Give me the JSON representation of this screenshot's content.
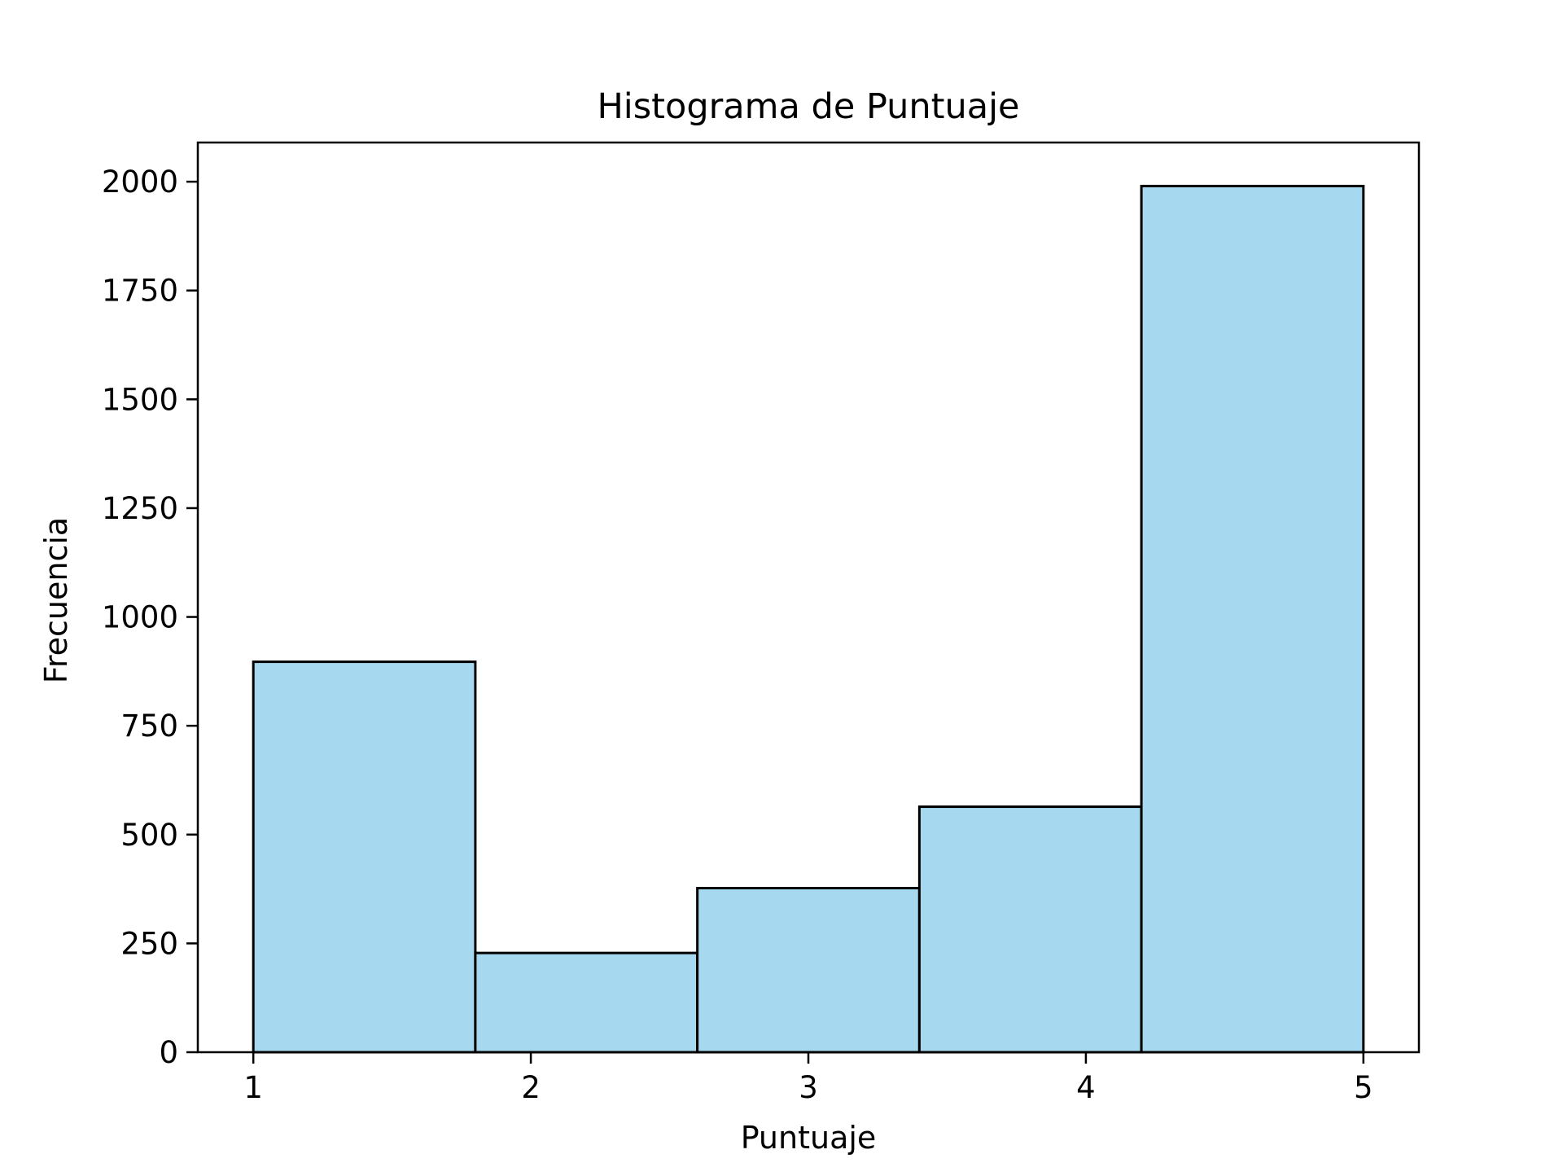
{
  "chart_data": {
    "type": "bar",
    "title": "Histograma de Puntuaje",
    "xlabel": "Puntuaje",
    "ylabel": "Frecuencia",
    "bins": [
      {
        "start": 1.0,
        "end": 1.8,
        "value": 897
      },
      {
        "start": 1.8,
        "end": 2.6,
        "value": 228
      },
      {
        "start": 2.6,
        "end": 3.4,
        "value": 377
      },
      {
        "start": 3.4,
        "end": 4.2,
        "value": 564
      },
      {
        "start": 4.2,
        "end": 5.0,
        "value": 1990
      }
    ],
    "xlim": [
      0.8,
      5.2
    ],
    "ylim": [
      0,
      2090
    ],
    "xticks": [
      1,
      2,
      3,
      4,
      5
    ],
    "yticks": [
      0,
      250,
      500,
      750,
      1000,
      1250,
      1500,
      1750,
      2000
    ],
    "grid": false,
    "legend": "none",
    "colors": {
      "bar_fill": "#a6d9ef",
      "bar_edge": "#000000",
      "axes": "#000000"
    }
  }
}
